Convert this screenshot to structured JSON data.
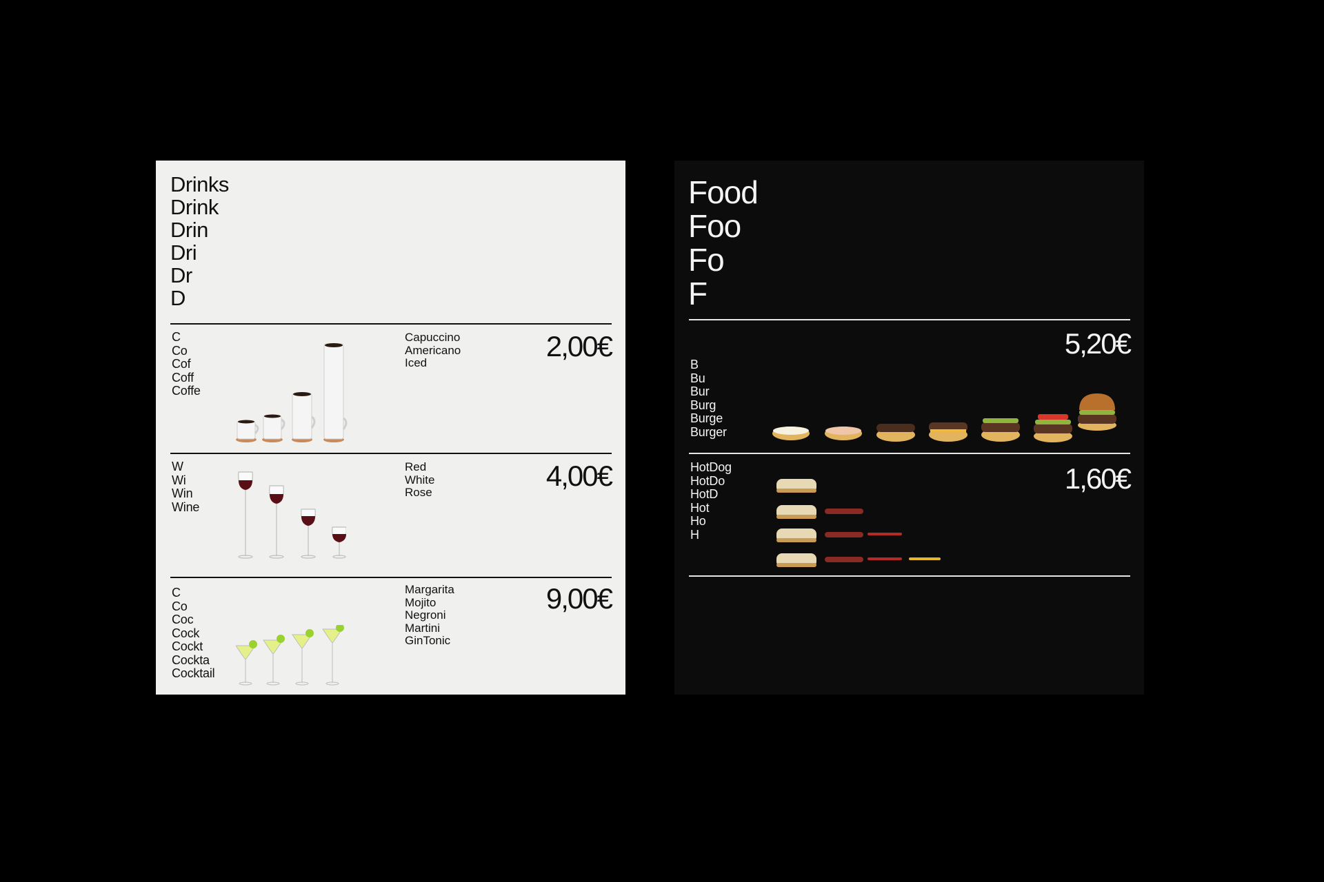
{
  "drinks": {
    "title_stack": [
      "Drinks",
      "Drink",
      "Drin",
      "Dri",
      "Dr",
      "D"
    ],
    "sections": [
      {
        "stack": [
          "C",
          "Co",
          "Cof",
          "Coff",
          "Coffe"
        ],
        "items": [
          "Capuccino",
          "Americano",
          "Iced"
        ],
        "price": "2,00€",
        "icon": "coffee-cups-icon"
      },
      {
        "stack": [
          "W",
          "Wi",
          "Win",
          "Wine"
        ],
        "items": [
          "Red",
          "White",
          "Rose"
        ],
        "price": "4,00€",
        "icon": "wine-glasses-icon"
      },
      {
        "stack": [
          "C",
          "Co",
          "Coc",
          "Cock",
          "Cockt",
          "Cockta",
          "Cocktail"
        ],
        "items": [
          "Margarita",
          "Mojito",
          "Negroni",
          "Martini",
          "GinTonic"
        ],
        "price": "9,00€",
        "icon": "margarita-glasses-icon"
      }
    ]
  },
  "food": {
    "title_stack": [
      "Food",
      "Foo",
      "Fo",
      "F"
    ],
    "sections": [
      {
        "stack": [
          "B",
          "Bu",
          "Bur",
          "Burg",
          "Burge",
          "Burger"
        ],
        "price": "5,20€",
        "icon": "burger-build-icon"
      },
      {
        "stack": [
          "HotDog",
          "HotDo",
          "HotD",
          "Hot",
          "Ho",
          "H"
        ],
        "price": "1,60€",
        "icon": "hotdog-build-icon"
      }
    ]
  },
  "colors": {
    "light_panel": "#f0f0ee",
    "dark_panel": "#0c0c0c",
    "background": "#000000",
    "text_dark": "#111111",
    "text_light": "#f4f4f4"
  }
}
